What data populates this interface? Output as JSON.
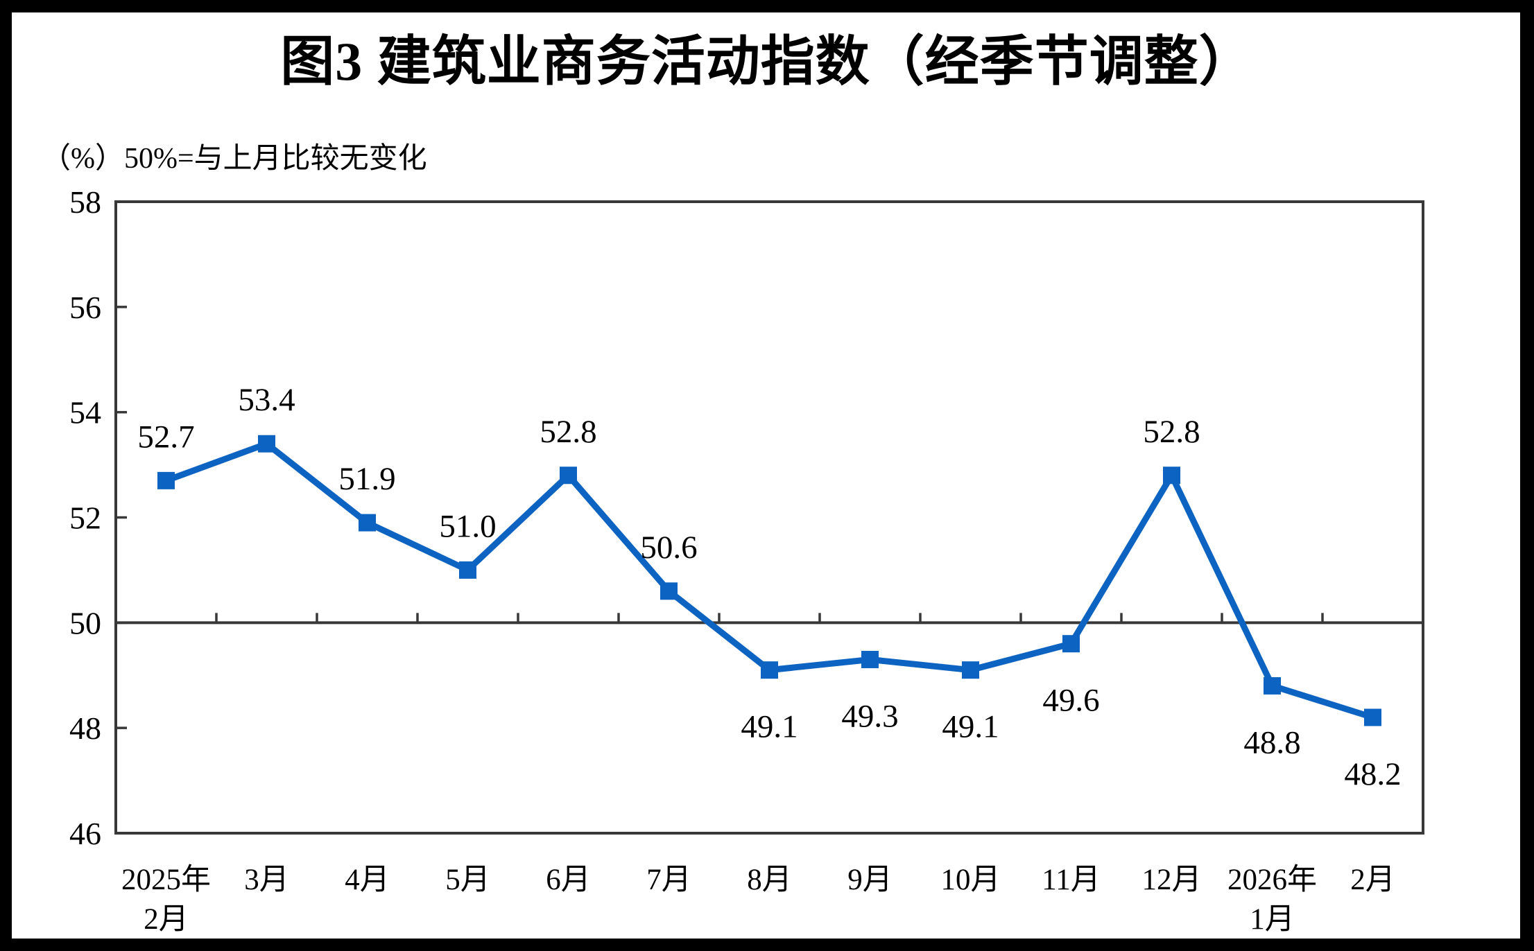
{
  "chart_data": {
    "type": "line",
    "title": "图3 建筑业商务活动指数（经季节调整）",
    "unit_note": "（%）50%=与上月比较无变化",
    "categories": [
      "2025年\n2月",
      "3月",
      "4月",
      "5月",
      "6月",
      "7月",
      "8月",
      "9月",
      "10月",
      "11月",
      "12月",
      "2026年\n1月",
      "2月"
    ],
    "values": [
      52.7,
      53.4,
      51.9,
      51.0,
      52.8,
      50.6,
      49.1,
      49.3,
      49.1,
      49.6,
      52.8,
      48.8,
      48.2
    ],
    "data_labels": [
      "52.7",
      "53.4",
      "51.9",
      "51.0",
      "52.8",
      "50.6",
      "49.1",
      "49.3",
      "49.1",
      "49.6",
      "52.8",
      "48.8",
      "48.2"
    ],
    "ylabel": "",
    "xlabel": "",
    "ylim": [
      46,
      58
    ],
    "yticks": [
      58,
      56,
      54,
      52,
      50,
      48,
      46
    ],
    "reference_line": 50,
    "grid": false,
    "legend_position": "none",
    "line_color": "#0d63c2",
    "marker_shape": "square",
    "axis_color": "#383838",
    "text_color": "#000000",
    "frame_color": "#000000"
  }
}
